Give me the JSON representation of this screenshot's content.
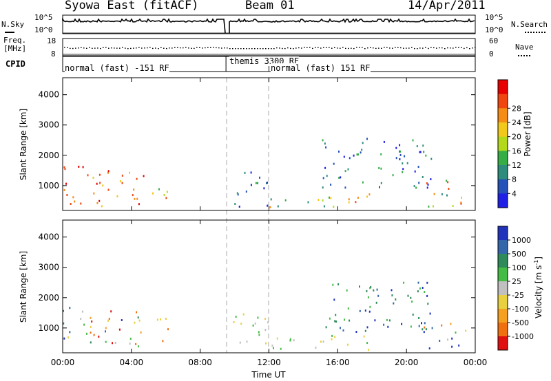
{
  "header": {
    "title": "Syowa East (fitACF)",
    "beam": "Beam 01",
    "date": "14/Apr/2011"
  },
  "status_panels": {
    "nsky_label": "N.Sky",
    "nsky_top": "10^5",
    "nsky_bottom": "10^0",
    "nsearch_label": "N.Search",
    "nsearch_top": "10^5",
    "nsearch_bottom": "10^0",
    "freq_label": "Freq.",
    "freq_unit": "[MHz]",
    "freq_top": "18",
    "freq_bottom": "8",
    "nave_label": "Nave",
    "nave_top": "60",
    "nave_bottom": "0",
    "cpid_label": "CPID",
    "cpid_segments": [
      {
        "label": "normal (fast) -151 RF",
        "start_h": 0,
        "end_h": 9.5
      },
      {
        "label": "themis 3300 RF",
        "start_h": 9.5,
        "end_h": 12.0
      },
      {
        "label": "normal (fast) 151 RF",
        "start_h": 12.0,
        "end_h": 24
      }
    ]
  },
  "chart_data": [
    {
      "type": "heatmap",
      "panel": "power",
      "ylabel": "Slant Range [km]",
      "xlabel": "",
      "xlim": [
        0,
        24
      ],
      "ylim": [
        180,
        4560
      ],
      "yticks": [
        "1000",
        "2000",
        "3000",
        "4000"
      ],
      "colorbar_label": "Power [dB]",
      "colorbar_ticks": [
        "4",
        "8",
        "12",
        "16",
        "20",
        "24",
        "28"
      ],
      "colorbar_colors": [
        "#1f1fe6",
        "#2452b8",
        "#2d8c7c",
        "#37ad46",
        "#b3d91a",
        "#f2c81a",
        "#f58c14",
        "#f04610",
        "#e60000"
      ],
      "regions": [
        {
          "t": [
            0,
            4.8
          ],
          "r": [
            350,
            1700
          ],
          "level": "high"
        },
        {
          "t": [
            5.2,
            6.4
          ],
          "r": [
            600,
            1400
          ],
          "level": "mid"
        },
        {
          "t": [
            9.8,
            12.0
          ],
          "r": [
            300,
            1500
          ],
          "level": "low"
        },
        {
          "t": [
            12.0,
            18.0
          ],
          "r": [
            300,
            800
          ],
          "level": "mid"
        },
        {
          "t": [
            15.0,
            21.5
          ],
          "r": [
            900,
            2600
          ],
          "level": "low"
        },
        {
          "t": [
            21.0,
            23.5
          ],
          "r": [
            300,
            1200
          ],
          "level": "mid"
        }
      ]
    },
    {
      "type": "heatmap",
      "panel": "velocity",
      "ylabel": "Slant Range [km]",
      "xlabel": "Time UT",
      "xlim": [
        0,
        24
      ],
      "ylim": [
        180,
        4560
      ],
      "xticks": [
        "00:00",
        "04:00",
        "08:00",
        "12:00",
        "16:00",
        "20:00",
        "00:00"
      ],
      "yticks": [
        "1000",
        "2000",
        "3000",
        "4000"
      ],
      "colorbar_label": "Velocity [m s^-1]",
      "colorbar_ticks": [
        "1000",
        "500",
        "100",
        "25",
        "-25",
        "-100",
        "-500",
        "-1000"
      ],
      "colorbar_colors": [
        "#2233bb",
        "#3366aa",
        "#2e8a5a",
        "#44bb44",
        "#c0c0c0",
        "#e8d040",
        "#f5a020",
        "#f07010",
        "#e01010"
      ],
      "regions": [
        {
          "t": [
            0,
            4.8
          ],
          "r": [
            350,
            1700
          ],
          "level": "mixed"
        },
        {
          "t": [
            5.2,
            6.4
          ],
          "r": [
            600,
            1400
          ],
          "level": "negative"
        },
        {
          "t": [
            9.8,
            12.0
          ],
          "r": [
            300,
            1500
          ],
          "level": "near-zero"
        },
        {
          "t": [
            12.0,
            18.0
          ],
          "r": [
            300,
            800
          ],
          "level": "near-zero"
        },
        {
          "t": [
            15.0,
            21.5
          ],
          "r": [
            900,
            2600
          ],
          "level": "positive"
        },
        {
          "t": [
            21.0,
            23.5
          ],
          "r": [
            300,
            1200
          ],
          "level": "mixed"
        }
      ]
    }
  ]
}
